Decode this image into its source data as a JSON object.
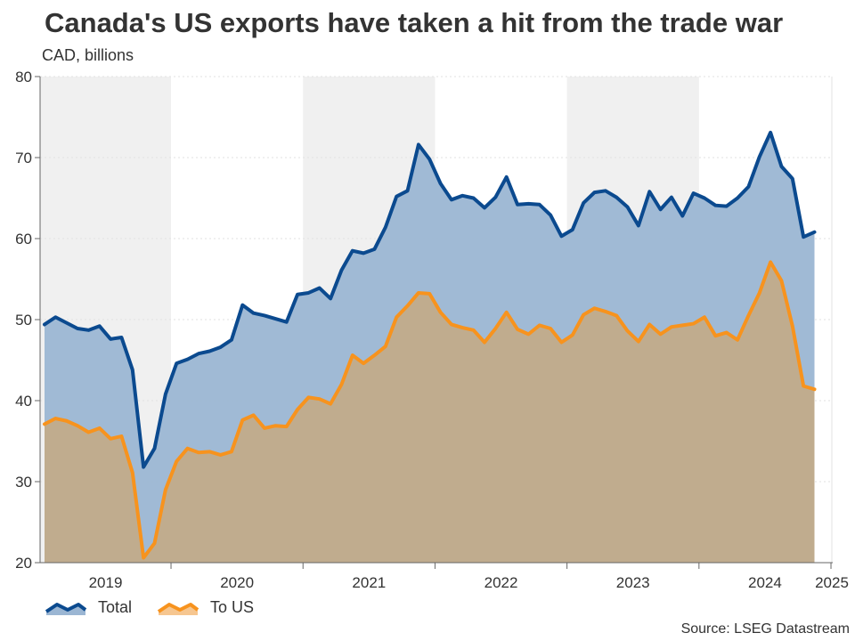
{
  "title": "Canada's US exports have taken a hit from the trade war",
  "subtitle": "CAD, billions",
  "source": "Source: LSEG Datastream",
  "colors": {
    "total_line": "#0b4a8f",
    "total_fill": "#9bb6d3",
    "us_line": "#f7931e",
    "us_fill": "#c2ab8a",
    "band": "#f0f0f0"
  },
  "chart_data": {
    "type": "area",
    "title": "Canada's US exports have taken a hit from the trade war",
    "subtitle": "CAD, billions",
    "ylim": [
      20,
      80
    ],
    "yticks": [
      20,
      30,
      40,
      50,
      60,
      70,
      80
    ],
    "x_start": "2019-01",
    "xticks": [
      "2019",
      "2020",
      "2021",
      "2022",
      "2023",
      "2024",
      "2025"
    ],
    "legend_position": "bottom-left",
    "series": [
      {
        "name": "Total",
        "values": [
          49.4,
          50.3,
          49.6,
          48.9,
          48.7,
          49.2,
          47.6,
          47.8,
          43.8,
          31.8,
          34.1,
          40.8,
          44.6,
          45.1,
          45.8,
          46.1,
          46.6,
          47.5,
          51.8,
          50.8,
          50.5,
          50.1,
          49.7,
          53.1,
          53.3,
          53.9,
          52.6,
          56.1,
          58.5,
          58.2,
          58.7,
          61.4,
          65.2,
          65.9,
          71.6,
          69.8,
          66.8,
          64.8,
          65.3,
          65.0,
          63.8,
          65.1,
          67.6,
          64.2,
          64.3,
          64.2,
          62.9,
          60.3,
          61.1,
          64.4,
          65.7,
          65.9,
          65.1,
          63.9,
          61.6,
          65.8,
          63.6,
          65.1,
          62.8,
          65.6,
          65.0,
          64.1,
          64.0,
          65.0,
          66.4,
          70.1,
          73.1,
          68.9,
          67.4,
          60.2,
          60.8
        ]
      },
      {
        "name": "To US",
        "values": [
          37.1,
          37.8,
          37.5,
          36.9,
          36.1,
          36.6,
          35.3,
          35.6,
          31.1,
          20.6,
          22.4,
          29.0,
          32.5,
          34.1,
          33.6,
          33.7,
          33.3,
          33.7,
          37.6,
          38.2,
          36.6,
          36.9,
          36.8,
          38.9,
          40.4,
          40.2,
          39.6,
          42.0,
          45.6,
          44.6,
          45.6,
          46.7,
          50.3,
          51.7,
          53.3,
          53.2,
          50.9,
          49.4,
          49.0,
          48.7,
          47.2,
          48.9,
          50.9,
          48.8,
          48.2,
          49.3,
          48.9,
          47.2,
          48.1,
          50.6,
          51.4,
          51.0,
          50.5,
          48.6,
          47.3,
          49.4,
          48.2,
          49.1,
          49.3,
          49.5,
          50.3,
          48.0,
          48.4,
          47.5,
          50.5,
          53.3,
          57.1,
          54.8,
          49.2,
          41.8,
          41.4
        ]
      }
    ]
  }
}
